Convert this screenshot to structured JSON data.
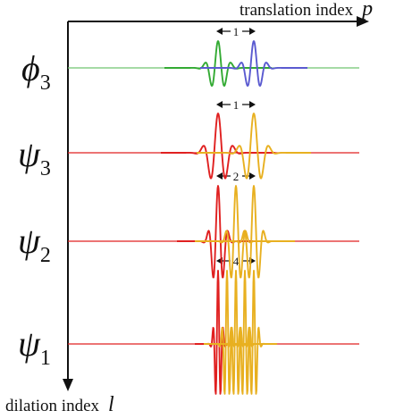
{
  "axes": {
    "horizontal_label": "translation index",
    "horizontal_symbol": "p",
    "vertical_label": "dilation index",
    "vertical_symbol": "l"
  },
  "rows": [
    {
      "id": "phi3",
      "symbol": "ϕ",
      "subscript": "3",
      "spacing_label": "1",
      "colors": [
        "#33aa33",
        "#5a5ad0"
      ],
      "thin_line": "#6fc46f"
    },
    {
      "id": "psi3",
      "symbol": "ψ",
      "subscript": "3",
      "spacing_label": "1",
      "colors": [
        "#e02020",
        "#e8b020"
      ],
      "thin_line": "#e02020"
    },
    {
      "id": "psi2",
      "symbol": "ψ",
      "subscript": "2",
      "spacing_label": "2",
      "colors": [
        "#e02020",
        "#e8b020"
      ],
      "thin_line": "#e02020"
    },
    {
      "id": "psi1",
      "symbol": "ψ",
      "subscript": "1",
      "spacing_label": "4",
      "colors": [
        "#e02020",
        "#e8b020"
      ],
      "thin_line": "#e02020"
    }
  ]
}
